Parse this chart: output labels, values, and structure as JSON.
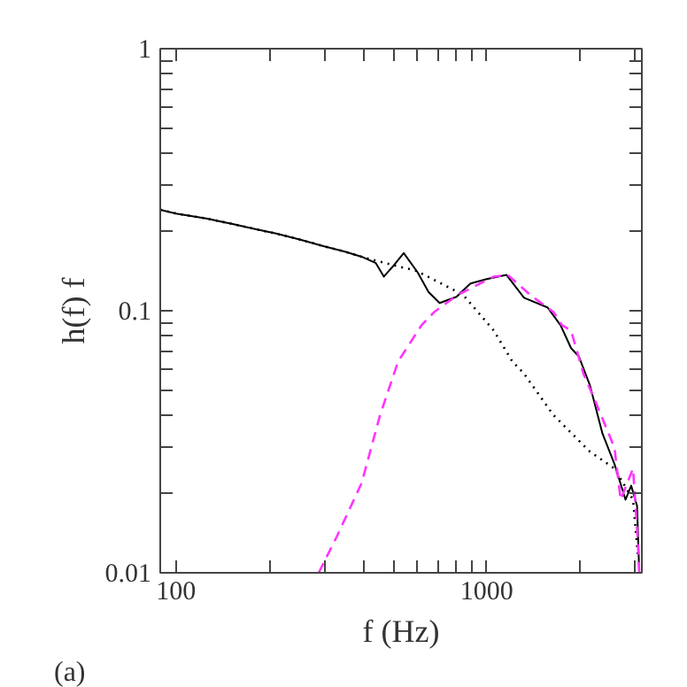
{
  "chart_data": {
    "type": "line",
    "xlabel": "f (Hz)",
    "ylabel": "h(f) f",
    "log": "xy",
    "xlim": [
      89,
      3160
    ],
    "ylim": [
      0.01,
      1
    ],
    "xticks": [
      100,
      {
        "value": 200,
        "label": null
      },
      {
        "value": 300,
        "label": null
      },
      {
        "value": 400,
        "label": null
      },
      {
        "value": 500,
        "label": null
      },
      {
        "value": 600,
        "label": null
      },
      {
        "value": 700,
        "label": null
      },
      {
        "value": 800,
        "label": null
      },
      {
        "value": 900,
        "label": null
      },
      1000,
      {
        "value": 2000,
        "label": null
      },
      {
        "value": 3000,
        "label": null
      }
    ],
    "yticks": [
      0.01,
      {
        "value": 0.02,
        "label": null
      },
      {
        "value": 0.03,
        "label": null
      },
      {
        "value": 0.04,
        "label": null
      },
      {
        "value": 0.05,
        "label": null
      },
      {
        "value": 0.06,
        "label": null
      },
      {
        "value": 0.07,
        "label": null
      },
      {
        "value": 0.08,
        "label": null
      },
      {
        "value": 0.09,
        "label": null
      },
      0.1,
      {
        "value": 0.2,
        "label": null
      },
      {
        "value": 0.3,
        "label": null
      },
      {
        "value": 0.4,
        "label": null
      },
      {
        "value": 0.5,
        "label": null
      },
      {
        "value": 0.6,
        "label": null
      },
      {
        "value": 0.7,
        "label": null
      },
      {
        "value": 0.8,
        "label": null
      },
      {
        "value": 0.9,
        "label": null
      },
      1
    ],
    "grid": false,
    "annotations": [
      "(a)"
    ],
    "series": [
      {
        "color": "#000000",
        "line_style": "solid",
        "x": [
          89,
          100,
          125,
          150,
          180,
          210,
          250,
          300,
          350,
          400,
          440,
          467,
          500,
          541,
          600,
          650,
          706,
          800,
          887,
          1000,
          1159,
          1320,
          1570,
          1730,
          1870,
          1980,
          2150,
          2360,
          2580,
          2800,
          2920,
          3050,
          3100
        ],
        "values": [
          0.243,
          0.235,
          0.225,
          0.215,
          0.205,
          0.197,
          0.187,
          0.176,
          0.168,
          0.16,
          0.152,
          0.135,
          0.148,
          0.166,
          0.14,
          0.118,
          0.107,
          0.113,
          0.127,
          0.132,
          0.137,
          0.112,
          0.103,
          0.088,
          0.072,
          0.067,
          0.052,
          0.034,
          0.026,
          0.019,
          0.0215,
          0.018,
          0.01
        ]
      },
      {
        "color": "#000000",
        "line_style": "dotted",
        "x": [
          89,
          100,
          125,
          150,
          180,
          210,
          250,
          300,
          350,
          400,
          472,
          594,
          734,
          840,
          1055,
          1210,
          1320,
          1640,
          2150,
          2580,
          2960,
          3070
        ],
        "values": [
          0.243,
          0.235,
          0.225,
          0.215,
          0.205,
          0.197,
          0.187,
          0.176,
          0.168,
          0.16,
          0.152,
          0.142,
          0.125,
          0.115,
          0.084,
          0.064,
          0.0575,
          0.04,
          0.029,
          0.025,
          0.019,
          0.0117
        ]
      },
      {
        "color": "#ff33ff",
        "line_style": "dashed",
        "x": [
          288,
          329,
          396,
          454,
          519,
          617,
          679,
          808,
          1055,
          1170,
          1380,
          1640,
          1750,
          1870,
          2050,
          2250,
          2580,
          2700,
          2960,
          3070,
          3100
        ],
        "values": [
          0.01,
          0.0137,
          0.022,
          0.04,
          0.064,
          0.088,
          0.099,
          0.115,
          0.135,
          0.137,
          0.115,
          0.099,
          0.088,
          0.084,
          0.0575,
          0.0445,
          0.03,
          0.019,
          0.025,
          0.013,
          0.01
        ]
      }
    ]
  }
}
